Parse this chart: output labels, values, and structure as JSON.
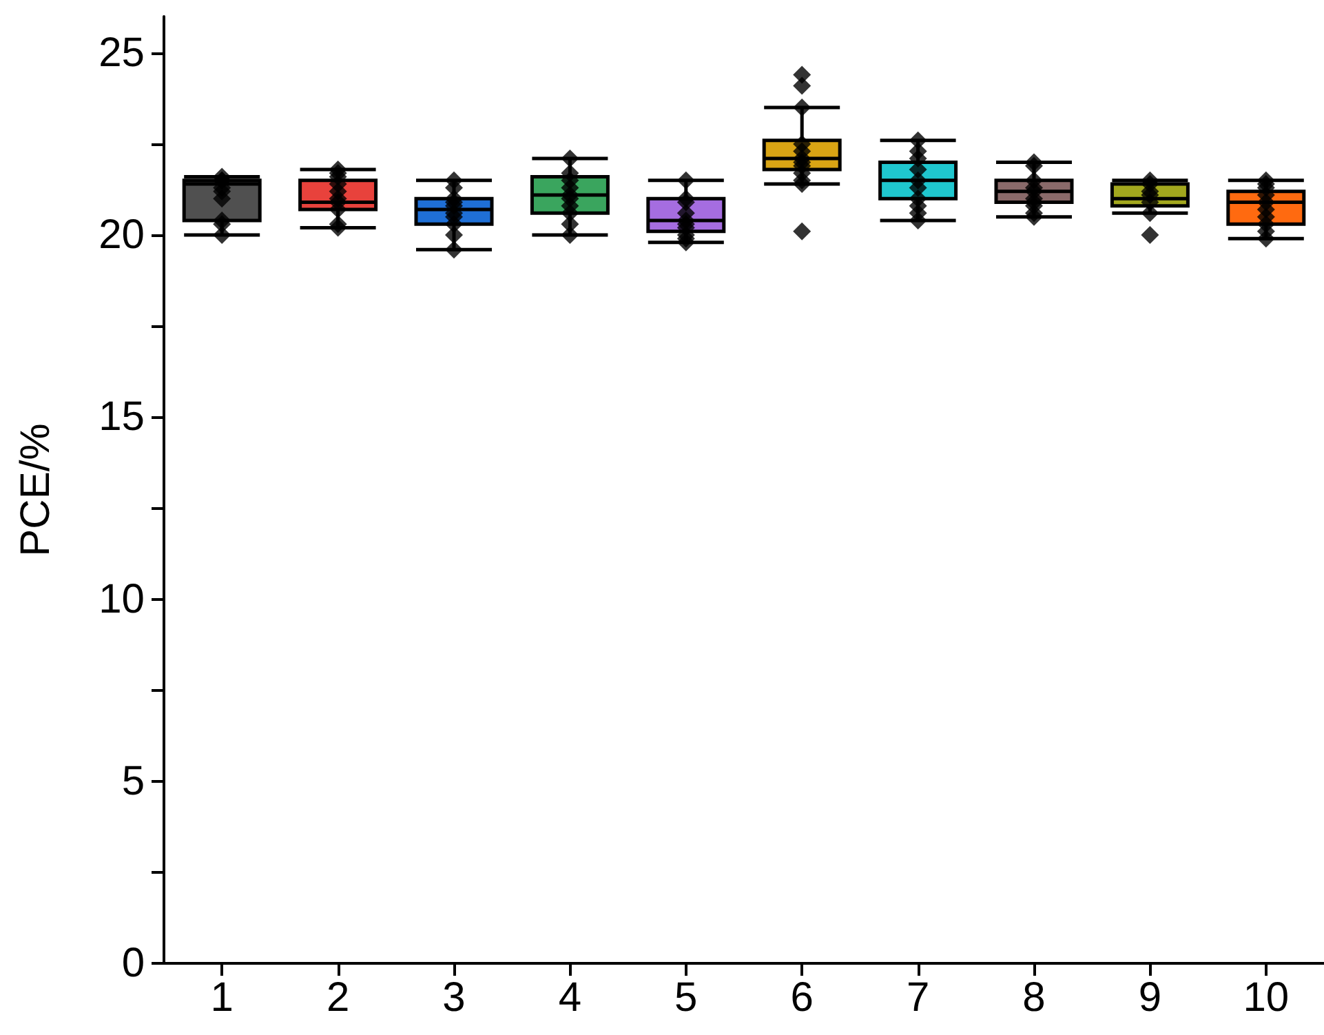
{
  "chart_data": {
    "type": "box",
    "ylabel": "PCE/%",
    "categories": [
      "1",
      "2",
      "3",
      "4",
      "5",
      "6",
      "7",
      "8",
      "9",
      "10"
    ],
    "ylim": [
      0,
      26
    ],
    "yticks": [
      0,
      {
        "value": 2.5,
        "label": null
      },
      5,
      {
        "value": 7.5,
        "label": null
      },
      10,
      {
        "value": 12.5,
        "label": null
      },
      15,
      {
        "value": 17.5,
        "label": null
      },
      20,
      {
        "value": 22.5,
        "label": null
      },
      25
    ],
    "grid": false,
    "series": [
      {
        "type": "box",
        "colors": [
          "#505050",
          "#e8423c",
          "#1f6fd6",
          "#3aa55e",
          "#a56de0",
          "#d9a414",
          "#1fc7cf",
          "#8a6a6a",
          "#a3a81e",
          "#ff6a10"
        ],
        "boxes": [
          {
            "low": 20.0,
            "q1": 20.4,
            "median": 21.4,
            "q3": 21.5,
            "high": 21.6
          },
          {
            "low": 20.2,
            "q1": 20.7,
            "median": 20.9,
            "q3": 21.5,
            "high": 21.8
          },
          {
            "low": 19.6,
            "q1": 20.3,
            "median": 20.7,
            "q3": 21.0,
            "high": 21.5
          },
          {
            "low": 20.0,
            "q1": 20.6,
            "median": 21.1,
            "q3": 21.6,
            "high": 22.1
          },
          {
            "low": 19.8,
            "q1": 20.1,
            "median": 20.4,
            "q3": 21.0,
            "high": 21.5
          },
          {
            "low": 21.4,
            "q1": 21.8,
            "median": 22.1,
            "q3": 22.6,
            "high": 23.5
          },
          {
            "low": 20.4,
            "q1": 21.0,
            "median": 21.5,
            "q3": 22.0,
            "high": 22.6
          },
          {
            "low": 20.5,
            "q1": 20.9,
            "median": 21.2,
            "q3": 21.5,
            "high": 22.0
          },
          {
            "low": 20.6,
            "q1": 20.8,
            "median": 21.0,
            "q3": 21.4,
            "high": 21.5
          },
          {
            "low": 19.9,
            "q1": 20.3,
            "median": 20.9,
            "q3": 21.2,
            "high": 21.5
          }
        ]
      },
      {
        "type": "scatter",
        "color": "#000000",
        "marker": "diamond",
        "x": [
          "1",
          "1",
          "1",
          "1",
          "1",
          "1",
          "1",
          "1",
          "1",
          "2",
          "2",
          "2",
          "2",
          "2",
          "2",
          "2",
          "2",
          "2",
          "2",
          "3",
          "3",
          "3",
          "3",
          "3",
          "3",
          "3",
          "3",
          "3",
          "3",
          "4",
          "4",
          "4",
          "4",
          "4",
          "4",
          "4",
          "4",
          "4",
          "4",
          "5",
          "5",
          "5",
          "5",
          "5",
          "5",
          "5",
          "5",
          "5",
          "5",
          "6",
          "6",
          "6",
          "6",
          "6",
          "6",
          "6",
          "6",
          "6",
          "6",
          "6",
          "6",
          "7",
          "7",
          "7",
          "7",
          "7",
          "7",
          "7",
          "7",
          "7",
          "7",
          "8",
          "8",
          "8",
          "8",
          "8",
          "8",
          "8",
          "8",
          "8",
          "8",
          "9",
          "9",
          "9",
          "9",
          "9",
          "9",
          "9",
          "10",
          "10",
          "10",
          "10",
          "10",
          "10",
          "10",
          "10",
          "10",
          "10"
        ],
        "values": [
          21.6,
          21.5,
          21.5,
          21.3,
          21.2,
          21.0,
          20.4,
          20.3,
          20.0,
          21.8,
          21.7,
          21.6,
          21.4,
          21.2,
          21.0,
          20.9,
          20.7,
          20.3,
          20.2,
          21.5,
          21.3,
          21.0,
          20.9,
          20.8,
          20.6,
          20.5,
          20.3,
          20.0,
          19.6,
          22.1,
          21.7,
          21.5,
          21.3,
          21.1,
          21.0,
          20.8,
          20.6,
          20.3,
          20.0,
          21.5,
          21.0,
          20.9,
          20.6,
          20.4,
          20.3,
          20.2,
          20.0,
          19.9,
          19.8,
          24.4,
          24.1,
          23.5,
          22.5,
          22.3,
          22.1,
          22.0,
          21.9,
          21.7,
          21.5,
          21.4,
          20.1,
          22.6,
          22.3,
          22.1,
          21.8,
          21.5,
          21.3,
          21.0,
          20.8,
          20.6,
          20.4,
          22.0,
          21.9,
          21.5,
          21.3,
          21.2,
          21.0,
          20.9,
          20.8,
          20.6,
          20.5,
          21.5,
          21.4,
          21.2,
          21.1,
          20.9,
          20.6,
          20.0,
          21.5,
          21.4,
          21.3,
          21.1,
          20.9,
          20.7,
          20.5,
          20.3,
          20.1,
          19.9
        ]
      }
    ]
  }
}
